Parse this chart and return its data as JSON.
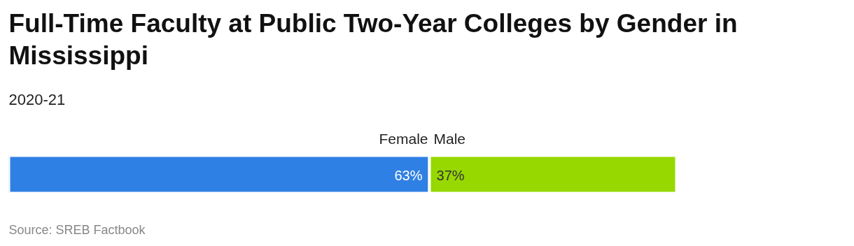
{
  "chart_data": {
    "type": "bar",
    "orientation": "horizontal",
    "stacked": true,
    "title": "Full-Time Faculty at Public Two-Year Colleges by Gender in Mississippi",
    "subtitle": "2020-21",
    "categories": [
      null
    ],
    "xlim": [
      0,
      100
    ],
    "series": [
      {
        "name": "Female",
        "color": "#2f80e4",
        "values": [
          63
        ],
        "value_labels": [
          "63%"
        ]
      },
      {
        "name": "Male",
        "color": "#96d800",
        "values": [
          37
        ],
        "value_labels": [
          "37%"
        ]
      }
    ],
    "annotations": [
      "Source: SREB Factbook"
    ]
  }
}
